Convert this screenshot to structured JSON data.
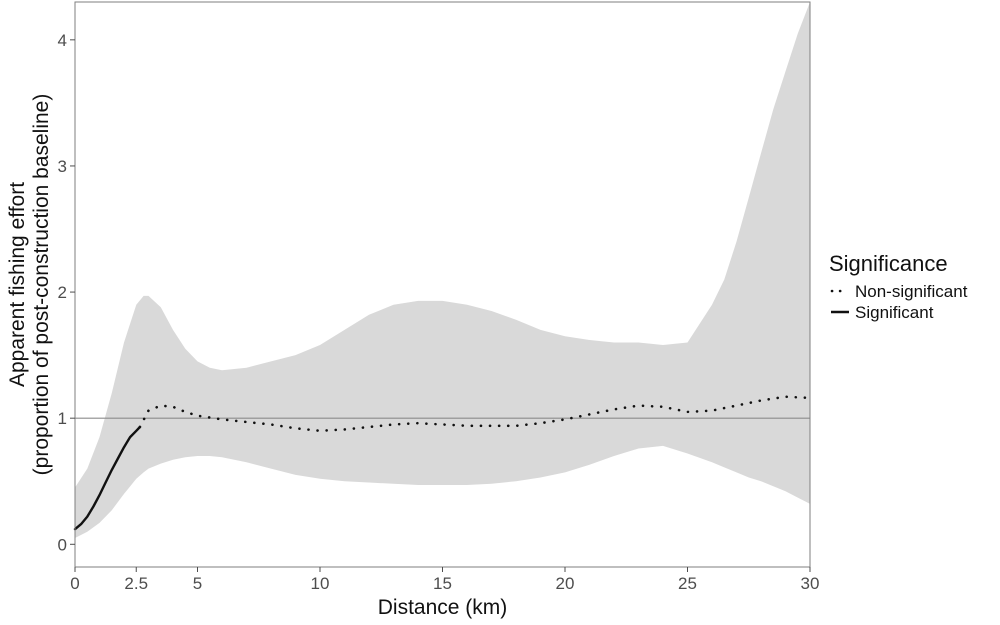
{
  "chart_data": {
    "type": "line",
    "xlabel": "Distance (km)",
    "ylabel": [
      "Apparent fishing effort",
      "(proportion of post-construction baseline)"
    ],
    "xlim": [
      0,
      30
    ],
    "ylim": [
      -0.18,
      4.3
    ],
    "x_ticks": [
      0,
      2.5,
      5,
      10,
      15,
      20,
      25,
      30
    ],
    "x_tick_labels": [
      "0",
      "2.5",
      "5",
      "10",
      "15",
      "20",
      "25",
      "30"
    ],
    "y_ticks": [
      0,
      1,
      2,
      3,
      4
    ],
    "y_tick_labels": [
      "0",
      "1",
      "2",
      "3",
      "4"
    ],
    "reference_line_y": 1,
    "grid": false,
    "legend": {
      "title": "Significance",
      "position": "right",
      "entries": [
        {
          "label": "Non-significant",
          "style": "dotted"
        },
        {
          "label": "Significant",
          "style": "solid"
        }
      ]
    },
    "ribbon": {
      "color": "#d9d9d9",
      "x": [
        0,
        0.5,
        1,
        1.5,
        2,
        2.5,
        2.8,
        3,
        3.5,
        4,
        4.5,
        5,
        5.5,
        6,
        7,
        8,
        9,
        10,
        11,
        12,
        13,
        14,
        15,
        16,
        17,
        18,
        19,
        20,
        21,
        22,
        23,
        24,
        25,
        26,
        26.5,
        27,
        27.5,
        28,
        28.5,
        29,
        29.5,
        30
      ],
      "upper": [
        0.45,
        0.6,
        0.85,
        1.2,
        1.6,
        1.9,
        1.97,
        1.97,
        1.88,
        1.7,
        1.55,
        1.45,
        1.4,
        1.38,
        1.4,
        1.45,
        1.5,
        1.58,
        1.7,
        1.82,
        1.9,
        1.93,
        1.93,
        1.9,
        1.85,
        1.78,
        1.7,
        1.65,
        1.62,
        1.6,
        1.6,
        1.58,
        1.6,
        1.9,
        2.1,
        2.4,
        2.75,
        3.1,
        3.45,
        3.75,
        4.05,
        4.3
      ],
      "lower": [
        0.05,
        0.1,
        0.17,
        0.27,
        0.4,
        0.52,
        0.57,
        0.6,
        0.64,
        0.67,
        0.69,
        0.7,
        0.7,
        0.69,
        0.65,
        0.6,
        0.55,
        0.52,
        0.5,
        0.49,
        0.48,
        0.47,
        0.47,
        0.47,
        0.48,
        0.5,
        0.53,
        0.57,
        0.63,
        0.7,
        0.76,
        0.78,
        0.72,
        0.65,
        0.61,
        0.57,
        0.53,
        0.5,
        0.46,
        0.42,
        0.37,
        0.32
      ]
    },
    "series": [
      {
        "name": "Significant",
        "style": "solid",
        "x": [
          0,
          0.25,
          0.5,
          0.75,
          1,
          1.25,
          1.5,
          1.75,
          2,
          2.25,
          2.5,
          2.65
        ],
        "y": [
          0.12,
          0.16,
          0.22,
          0.3,
          0.39,
          0.49,
          0.59,
          0.68,
          0.77,
          0.85,
          0.9,
          0.93
        ]
      },
      {
        "name": "Non-significant",
        "style": "dotted",
        "x": [
          2.65,
          3,
          3.5,
          4,
          4.5,
          5,
          6,
          7,
          8,
          9,
          10,
          11,
          12,
          13,
          14,
          15,
          16,
          17,
          18,
          19,
          20,
          21,
          22,
          23,
          24,
          25,
          26,
          27,
          28,
          29,
          30
        ],
        "y": [
          0.93,
          1.06,
          1.1,
          1.09,
          1.05,
          1.02,
          0.99,
          0.97,
          0.95,
          0.92,
          0.9,
          0.91,
          0.93,
          0.95,
          0.96,
          0.95,
          0.94,
          0.94,
          0.94,
          0.96,
          0.99,
          1.03,
          1.07,
          1.1,
          1.09,
          1.05,
          1.06,
          1.1,
          1.14,
          1.17,
          1.16
        ]
      }
    ]
  }
}
